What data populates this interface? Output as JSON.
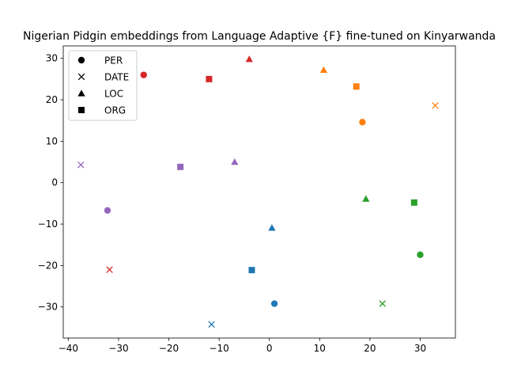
{
  "chart_data": {
    "type": "scatter",
    "title": "Nigerian Pidgin embeddings from Language Adaptive {F} fine-tuned on Kinyarwanda",
    "xlabel": "",
    "ylabel": "",
    "xlim": [
      -41,
      37
    ],
    "ylim": [
      -37.5,
      33
    ],
    "x_ticks": [
      -40,
      -30,
      -20,
      -10,
      0,
      10,
      20,
      30
    ],
    "y_ticks": [
      -30,
      -20,
      -10,
      0,
      10,
      20,
      30
    ],
    "x_tick_labels": [
      "−40",
      "−30",
      "−20",
      "−10",
      "0",
      "10",
      "20",
      "30"
    ],
    "y_tick_labels": [
      "−30",
      "−20",
      "−10",
      "0",
      "10",
      "20",
      "30"
    ],
    "grid": false,
    "legend": {
      "position": "top-left",
      "entries": [
        {
          "label": "PER",
          "marker": "circle"
        },
        {
          "label": "DATE",
          "marker": "x"
        },
        {
          "label": "LOC",
          "marker": "triangle"
        },
        {
          "label": "ORG",
          "marker": "square"
        }
      ]
    },
    "groups": [
      {
        "color": "#1f77b4",
        "points": {
          "PER": [
            1.0,
            -29.2
          ],
          "DATE": [
            -11.5,
            -34.2
          ],
          "LOC": [
            0.5,
            -10.9
          ],
          "ORG": [
            -3.5,
            -21.1
          ]
        }
      },
      {
        "color": "#ff7f0e",
        "points": {
          "PER": [
            18.5,
            14.6
          ],
          "DATE": [
            33.0,
            18.6
          ],
          "LOC": [
            10.8,
            27.2
          ],
          "ORG": [
            17.3,
            23.2
          ]
        }
      },
      {
        "color": "#2ca02c",
        "points": {
          "PER": [
            30.0,
            -17.4
          ],
          "DATE": [
            22.5,
            -29.2
          ],
          "LOC": [
            19.2,
            -3.9
          ],
          "ORG": [
            28.8,
            -4.8
          ]
        }
      },
      {
        "color": "#d62728",
        "points": {
          "PER": [
            -25.0,
            26.0
          ],
          "DATE": [
            -31.8,
            -21.0
          ],
          "LOC": [
            -4.0,
            29.8
          ],
          "ORG": [
            -12.0,
            25.0
          ]
        }
      },
      {
        "color": "#9467bd",
        "points": {
          "PER": [
            -32.2,
            -6.7
          ],
          "DATE": [
            -37.5,
            4.3
          ],
          "LOC": [
            -6.9,
            5.0
          ],
          "ORG": [
            -17.7,
            3.8
          ]
        }
      }
    ]
  }
}
